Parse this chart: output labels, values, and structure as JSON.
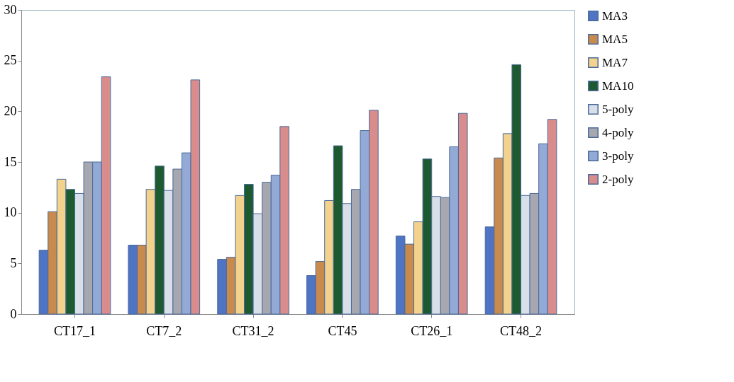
{
  "chart_data": {
    "type": "bar",
    "categories": [
      "CT17_1",
      "CT7_2",
      "CT31_2",
      "CT45",
      "CT26_1",
      "CT48_2"
    ],
    "series": [
      {
        "name": "MA3",
        "color": "#4f74c4",
        "values": [
          6.3,
          6.8,
          5.4,
          3.8,
          7.7,
          8.6
        ]
      },
      {
        "name": "MA5",
        "color": "#c98a4e",
        "values": [
          10.1,
          6.8,
          5.6,
          5.2,
          6.9,
          15.4
        ]
      },
      {
        "name": "MA7",
        "color": "#f2d28c",
        "values": [
          13.3,
          12.3,
          11.7,
          11.2,
          9.1,
          17.8
        ]
      },
      {
        "name": "MA10",
        "color": "#1e5a30",
        "values": [
          12.3,
          14.6,
          12.8,
          16.6,
          15.3,
          24.6
        ]
      },
      {
        "name": "5-poly",
        "color": "#d9dfe9",
        "values": [
          11.9,
          12.2,
          9.9,
          10.9,
          11.6,
          11.7
        ]
      },
      {
        "name": "4-poly",
        "color": "#a7a7b0",
        "values": [
          15.0,
          14.3,
          13.0,
          12.3,
          11.5,
          11.9
        ]
      },
      {
        "name": "3-poly",
        "color": "#94aad6",
        "values": [
          15.0,
          15.9,
          13.7,
          18.1,
          16.5,
          16.8
        ]
      },
      {
        "name": "2-poly",
        "color": "#d98c8c",
        "values": [
          23.4,
          23.1,
          18.5,
          20.1,
          19.8,
          19.2
        ]
      }
    ],
    "ylim": [
      0,
      30
    ],
    "yticks": [
      0,
      5,
      10,
      15,
      20,
      25,
      30
    ],
    "grid": false,
    "legend": "right"
  }
}
